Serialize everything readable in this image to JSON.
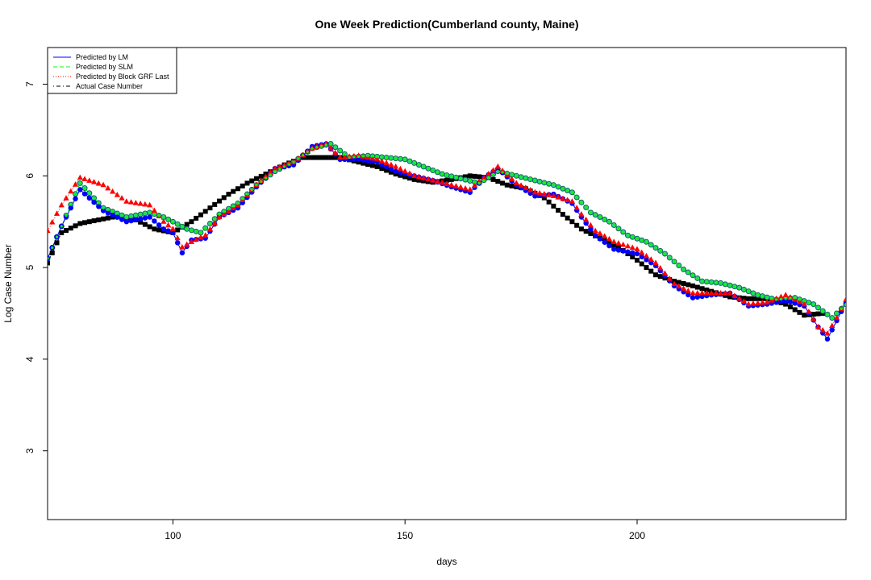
{
  "chart_data": {
    "type": "line",
    "title": "One Week Prediction(Cumberland county, Maine)",
    "xlabel": "days",
    "ylabel": "Log Case Number",
    "xlim": [
      73,
      245
    ],
    "ylim": [
      2.25,
      7.4
    ],
    "x_ticks": [
      "100",
      "150",
      "200"
    ],
    "y_ticks": [
      "3",
      "4",
      "5",
      "6",
      "7"
    ],
    "grid": false,
    "legend_position": "top-left",
    "legend": [
      {
        "label": "Predicted by LM",
        "color": "#0000ff",
        "line": "solid"
      },
      {
        "label": "Predicted by SLM",
        "color": "#00ff00",
        "line": "dashed"
      },
      {
        "label": "Predicted by Block GRF Last",
        "color": "#ff0000",
        "line": "dotted"
      },
      {
        "label": "Actual Case Number",
        "color": "#000000",
        "line": "dotdash"
      }
    ],
    "series": [
      {
        "name": "Predicted by LM",
        "color": "#0000ff",
        "marker": "circle",
        "x": [
          73,
          76,
          80,
          85,
          90,
          95,
          98,
          100,
          102,
          104,
          107,
          110,
          114,
          118,
          122,
          126,
          130,
          133,
          136,
          140,
          144,
          148,
          152,
          156,
          160,
          164,
          167,
          170,
          174,
          178,
          182,
          186,
          188,
          191,
          195,
          200,
          204,
          208,
          212,
          216,
          220,
          224,
          228,
          232,
          236,
          239,
          241,
          243,
          245
        ],
        "y": [
          5.1,
          5.45,
          5.85,
          5.62,
          5.5,
          5.55,
          5.42,
          5.38,
          5.16,
          5.3,
          5.32,
          5.55,
          5.65,
          5.88,
          6.08,
          6.12,
          6.32,
          6.35,
          6.18,
          6.18,
          6.15,
          6.05,
          6.0,
          5.95,
          5.88,
          5.82,
          5.98,
          6.08,
          5.9,
          5.78,
          5.8,
          5.7,
          5.55,
          5.35,
          5.2,
          5.15,
          5.02,
          4.8,
          4.67,
          4.7,
          4.72,
          4.58,
          4.6,
          4.64,
          4.58,
          4.35,
          4.22,
          4.42,
          4.62
        ]
      },
      {
        "name": "Predicted by SLM",
        "color": "#00ff00",
        "marker": "diamond",
        "x": [
          73,
          76,
          80,
          85,
          90,
          95,
          98,
          100,
          103,
          106,
          110,
          114,
          118,
          122,
          126,
          130,
          134,
          138,
          142,
          146,
          150,
          154,
          158,
          162,
          166,
          170,
          174,
          178,
          182,
          186,
          190,
          194,
          198,
          202,
          206,
          210,
          214,
          218,
          222,
          226,
          230,
          234,
          238,
          242,
          245
        ],
        "y": [
          5.1,
          5.45,
          5.92,
          5.65,
          5.55,
          5.6,
          5.55,
          5.5,
          5.42,
          5.38,
          5.58,
          5.7,
          5.9,
          6.05,
          6.15,
          6.3,
          6.35,
          6.2,
          6.22,
          6.2,
          6.18,
          6.1,
          6.02,
          5.97,
          5.92,
          6.05,
          6.0,
          5.95,
          5.9,
          5.82,
          5.6,
          5.5,
          5.35,
          5.28,
          5.15,
          4.98,
          4.85,
          4.83,
          4.78,
          4.7,
          4.65,
          4.67,
          4.6,
          4.45,
          4.6
        ]
      },
      {
        "name": "Predicted by Block GRF Last",
        "color": "#ff0000",
        "marker": "triangle",
        "x": [
          73,
          76,
          80,
          85,
          90,
          95,
          98,
          100,
          102,
          104,
          107,
          110,
          114,
          118,
          122,
          126,
          130,
          133,
          136,
          140,
          144,
          148,
          152,
          156,
          160,
          164,
          167,
          170,
          174,
          178,
          182,
          186,
          188,
          191,
          195,
          200,
          204,
          208,
          212,
          216,
          220,
          224,
          228,
          232,
          236,
          239,
          241,
          243,
          245
        ],
        "y": [
          5.4,
          5.68,
          5.98,
          5.9,
          5.72,
          5.68,
          5.5,
          5.42,
          5.22,
          5.28,
          5.35,
          5.55,
          5.68,
          5.9,
          6.08,
          6.15,
          6.3,
          6.35,
          6.2,
          6.22,
          6.18,
          6.1,
          6.0,
          5.95,
          5.9,
          5.85,
          5.98,
          6.1,
          5.92,
          5.82,
          5.78,
          5.72,
          5.58,
          5.4,
          5.28,
          5.2,
          5.05,
          4.82,
          4.72,
          4.72,
          4.72,
          4.6,
          4.62,
          4.7,
          4.6,
          4.35,
          4.28,
          4.45,
          4.65
        ]
      },
      {
        "name": "Actual Case Number",
        "color": "#000000",
        "marker": "square",
        "x": [
          73,
          76,
          80,
          84,
          88,
          92,
          96,
          100,
          104,
          108,
          112,
          116,
          120,
          124,
          128,
          132,
          136,
          140,
          144,
          148,
          152,
          156,
          160,
          164,
          168,
          172,
          176,
          180,
          184,
          188,
          192,
          196,
          200,
          204,
          208,
          212,
          216,
          220,
          224,
          228,
          232,
          236,
          240
        ],
        "y": [
          5.05,
          5.38,
          5.48,
          5.52,
          5.56,
          5.52,
          5.42,
          5.38,
          5.5,
          5.65,
          5.8,
          5.92,
          6.02,
          6.12,
          6.2,
          6.2,
          6.2,
          6.15,
          6.1,
          6.02,
          5.96,
          5.93,
          5.96,
          6.0,
          5.98,
          5.9,
          5.86,
          5.76,
          5.58,
          5.42,
          5.32,
          5.22,
          5.08,
          4.92,
          4.85,
          4.8,
          4.74,
          4.68,
          4.66,
          4.66,
          4.6,
          4.48,
          4.5
        ]
      }
    ]
  }
}
